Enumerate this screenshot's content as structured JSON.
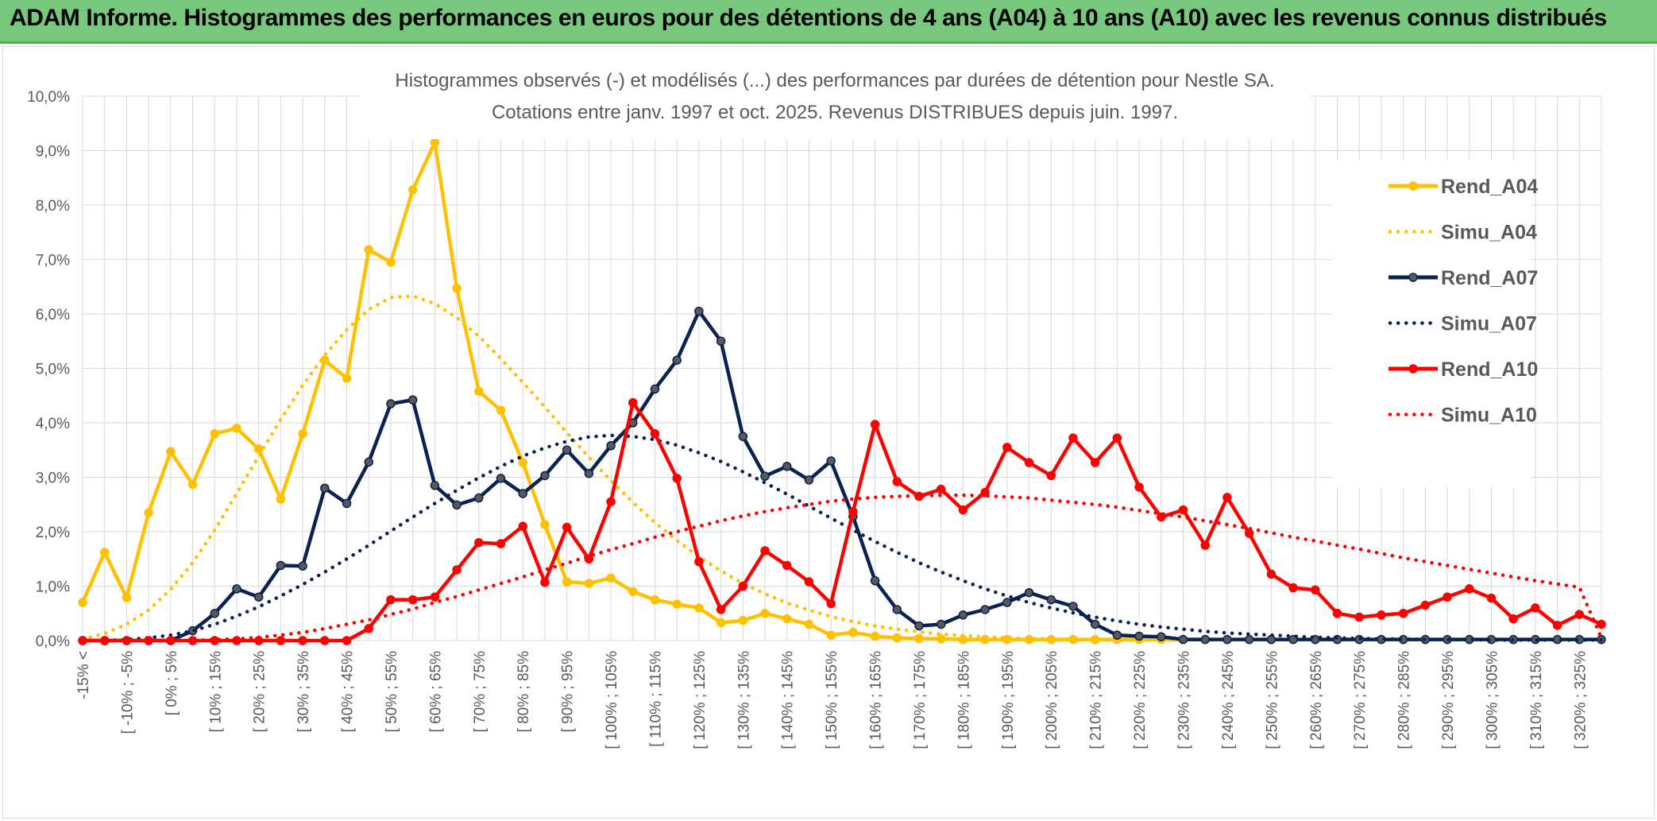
{
  "banner": {
    "title": "ADAM Informe. Histogrammes des performances en euros pour des détentions de 4 ans (A04) à 10 ans (A10) avec les revenus connus distribués",
    "background": "#77c77c"
  },
  "chart_data": {
    "type": "line",
    "title": "Histogrammes observés (-) et modélisés (...) des performances par durées de détention pour Nestle SA.",
    "subtitle": "Cotations entre janv. 1997 et oct. 2025. Revenus DISTRIBUES depuis juin. 1997.",
    "xlabel": "",
    "ylabel": "",
    "ylim": [
      0,
      10
    ],
    "y_unit": "%",
    "y_ticks": [
      "0,0%",
      "1,0%",
      "2,0%",
      "3,0%",
      "4,0%",
      "5,0%",
      "6,0%",
      "7,0%",
      "8,0%",
      "9,0%",
      "10,0%"
    ],
    "grid": true,
    "legend_position": "right",
    "x_tick_labels": [
      "-15% <",
      "[ -10% ; -5%",
      "[ 0% ; 5%",
      "[ 10% ; 15%",
      "[ 20% ; 25%",
      "[ 30% ; 35%",
      "[ 40% ; 45%",
      "[ 50% ; 55%",
      "[ 60% ; 65%",
      "[ 70% ; 75%",
      "[ 80% ; 85%",
      "[ 90% ; 95%",
      "[ 100% ; 105%",
      "[ 110% ; 115%",
      "[ 120% ; 125%",
      "[ 130% ; 135%",
      "[ 140% ; 145%",
      "[ 150% ; 155%",
      "[ 160% ; 165%",
      "[ 170% ; 175%",
      "[ 180% ; 185%",
      "[ 190% ; 195%",
      "[ 200% ; 205%",
      "[ 210% ; 215%",
      "[ 220% ; 225%",
      "[ 230% ; 235%",
      "[ 240% ; 245%",
      "[ 250% ; 255%",
      "[ 260% ; 265%",
      "[ 270% ; 275%",
      "[ 280% ; 285%",
      "[ 290% ; 295%",
      "[ 300% ; 305%",
      "[ 310% ; 315%",
      "[ 320% ; 325%"
    ],
    "series": [
      {
        "name": "Rend_A04",
        "color": "#ffc000",
        "style": "solid",
        "values": [
          0.7,
          1.62,
          0.79,
          2.35,
          3.47,
          2.87,
          3.8,
          3.9,
          3.52,
          2.6,
          3.8,
          5.15,
          4.82,
          7.18,
          6.95,
          8.28,
          9.15,
          6.47,
          4.58,
          4.23,
          3.27,
          2.13,
          1.08,
          1.05,
          1.15,
          0.9,
          0.75,
          0.67,
          0.6,
          0.33,
          0.37,
          0.5,
          0.4,
          0.3,
          0.1,
          0.15,
          0.08,
          0.05,
          0.04,
          0.03,
          0.02,
          0.02,
          0.02,
          0.02,
          0.02,
          0.02,
          0.02,
          0.02,
          0.02,
          0.02,
          0.02,
          0.02
        ]
      },
      {
        "name": "Simu_A04",
        "color": "#ffc000",
        "style": "dotted",
        "values": [
          0.02,
          0.13,
          0.3,
          0.56,
          0.94,
          1.43,
          2.03,
          2.7,
          3.39,
          4.06,
          4.69,
          5.24,
          5.71,
          6.08,
          6.3,
          6.33,
          6.19,
          5.93,
          5.59,
          5.18,
          4.74,
          4.29,
          3.82,
          3.37,
          2.94,
          2.54,
          2.17,
          1.84,
          1.54,
          1.28,
          1.05,
          0.86,
          0.69,
          0.56,
          0.44,
          0.35,
          0.27,
          0.21,
          0.16,
          0.12,
          0.09,
          0.07,
          0.05,
          0.04,
          0.03,
          0.02,
          0.02,
          0.01,
          0.01,
          0.01,
          0.01
        ]
      },
      {
        "name": "Rend_A07",
        "color": "#0a2253",
        "style": "solid",
        "values": [
          0.0,
          0.0,
          0.0,
          0.0,
          0.0,
          0.18,
          0.5,
          0.95,
          0.8,
          1.38,
          1.37,
          2.8,
          2.52,
          3.28,
          4.35,
          4.42,
          2.85,
          2.49,
          2.62,
          2.98,
          2.7,
          3.03,
          3.5,
          3.07,
          3.58,
          4.0,
          4.62,
          5.15,
          6.05,
          5.5,
          3.75,
          3.02,
          3.2,
          2.95,
          3.3,
          2.28,
          1.1,
          0.57,
          0.27,
          0.3,
          0.47,
          0.57,
          0.7,
          0.88,
          0.75,
          0.63,
          0.3,
          0.1,
          0.08,
          0.07,
          0.02,
          0.02,
          0.02,
          0.02,
          0.02,
          0.02,
          0.02,
          0.02,
          0.02,
          0.02,
          0.02,
          0.02,
          0.02,
          0.02,
          0.02,
          0.02,
          0.02,
          0.02,
          0.02,
          0.02
        ]
      },
      {
        "name": "Simu_A07",
        "color": "#0a2253",
        "style": "dotted",
        "values": [
          0.0,
          0.0,
          0.02,
          0.05,
          0.1,
          0.18,
          0.3,
          0.45,
          0.62,
          0.82,
          1.03,
          1.26,
          1.5,
          1.75,
          2.01,
          2.27,
          2.52,
          2.76,
          2.99,
          3.2,
          3.39,
          3.54,
          3.66,
          3.74,
          3.77,
          3.75,
          3.69,
          3.59,
          3.45,
          3.29,
          3.1,
          2.9,
          2.69,
          2.47,
          2.25,
          2.03,
          1.82,
          1.62,
          1.43,
          1.26,
          1.1,
          0.95,
          0.82,
          0.7,
          0.6,
          0.51,
          0.43,
          0.36,
          0.3,
          0.25,
          0.21,
          0.17,
          0.14,
          0.12,
          0.1,
          0.08,
          0.06,
          0.05,
          0.04,
          0.03,
          0.03,
          0.02,
          0.02,
          0.02,
          0.01,
          0.01,
          0.01,
          0.01,
          0.01,
          0.01
        ]
      },
      {
        "name": "Rend_A10",
        "color": "#ff0000",
        "style": "solid",
        "values": [
          0.0,
          0.0,
          0.0,
          0.0,
          0.0,
          0.0,
          0.0,
          0.0,
          0.0,
          0.0,
          0.0,
          0.0,
          0.0,
          0.22,
          0.75,
          0.75,
          0.8,
          1.3,
          1.8,
          1.78,
          2.1,
          1.07,
          2.08,
          1.5,
          2.55,
          4.37,
          3.8,
          2.98,
          1.45,
          0.57,
          1.0,
          1.65,
          1.38,
          1.08,
          0.68,
          2.37,
          3.97,
          2.92,
          2.65,
          2.78,
          2.4,
          2.72,
          3.55,
          3.27,
          3.03,
          3.72,
          3.27,
          3.72,
          2.82,
          2.27,
          2.4,
          1.75,
          2.63,
          1.97,
          1.22,
          0.97,
          0.93,
          0.5,
          0.43,
          0.47,
          0.5,
          0.65,
          0.8,
          0.95,
          0.78,
          0.4,
          0.6,
          0.28,
          0.48,
          0.3
        ]
      },
      {
        "name": "Simu_A10",
        "color": "#ff0000",
        "style": "dotted",
        "values": [
          0.0,
          0.0,
          0.0,
          0.0,
          0.0,
          0.0,
          0.02,
          0.03,
          0.06,
          0.1,
          0.15,
          0.22,
          0.3,
          0.38,
          0.48,
          0.58,
          0.7,
          0.81,
          0.93,
          1.05,
          1.17,
          1.3,
          1.42,
          1.55,
          1.67,
          1.78,
          1.9,
          2.0,
          2.1,
          2.2,
          2.29,
          2.37,
          2.44,
          2.5,
          2.56,
          2.6,
          2.63,
          2.65,
          2.66,
          2.67,
          2.67,
          2.66,
          2.64,
          2.62,
          2.58,
          2.54,
          2.5,
          2.45,
          2.39,
          2.33,
          2.27,
          2.2,
          2.13,
          2.06,
          1.98,
          1.9,
          1.83,
          1.75,
          1.68,
          1.6,
          1.52,
          1.45,
          1.38,
          1.31,
          1.24,
          1.17,
          1.1,
          1.04,
          0.98,
          0.05
        ]
      }
    ]
  }
}
